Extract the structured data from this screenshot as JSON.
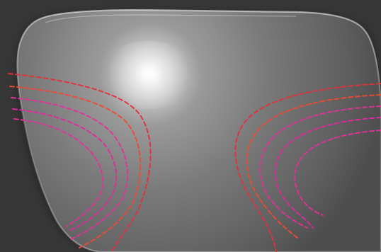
{
  "scene": {
    "subject": "progressive-lens",
    "colors": {
      "background": "#363636",
      "lens_edge": "#e6e6e6",
      "lens_shadow": "#1a1a1a",
      "highlight": "#ffffff",
      "contour_red": "#e4303a",
      "contour_orange_red": "#ee4a32",
      "contour_pink": "#e4309a",
      "contour_magenta": "#e2289e"
    },
    "contours": {
      "left_count": 5,
      "right_count": 5,
      "style": "dashed"
    }
  }
}
